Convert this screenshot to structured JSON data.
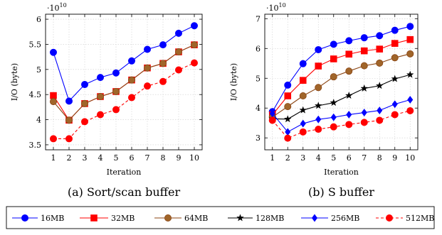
{
  "figure": {
    "legend": [
      {
        "label": "16MB",
        "color": "#0000ff",
        "marker": "circle",
        "dash": "solid"
      },
      {
        "label": "32MB",
        "color": "#ff0000",
        "marker": "square",
        "dash": "solid"
      },
      {
        "label": "64MB",
        "color": "#8b4513",
        "marker": "circle",
        "dash": "solid",
        "fill": "#a0652a"
      },
      {
        "label": "128MB",
        "color": "#000000",
        "marker": "star",
        "dash": "solid"
      },
      {
        "label": "256MB",
        "color": "#0000ff",
        "marker": "diamond",
        "dash": "solid"
      },
      {
        "label": "512MB",
        "color": "#ff0000",
        "marker": "circle",
        "dash": "dashed"
      }
    ]
  },
  "chart_data": [
    {
      "type": "line",
      "caption": "(a) Sort/scan buffer",
      "xlabel": "Iteration",
      "ylabel": "I/O (byte)",
      "scale_label": "·10",
      "scale_exp": "10",
      "x": [
        1,
        2,
        3,
        4,
        5,
        6,
        7,
        8,
        9,
        10
      ],
      "xlim": [
        0.5,
        10.5
      ],
      "ylim": [
        3.4,
        6.1
      ],
      "yticks": [
        3.5,
        4,
        4.5,
        5,
        5.5,
        6
      ],
      "ytick_labels": [
        "3.5",
        "4",
        "4.5",
        "5",
        "5.5",
        "6"
      ],
      "grid": true,
      "series": [
        {
          "name": "16MB",
          "values": [
            5.34,
            4.37,
            4.7,
            4.84,
            4.93,
            5.17,
            5.4,
            5.49,
            5.72,
            5.87
          ]
        },
        {
          "name": "32MB",
          "values": [
            4.48,
            3.99,
            4.32,
            4.46,
            4.56,
            4.79,
            5.03,
            5.12,
            5.35,
            5.49
          ]
        },
        {
          "name": "64MB",
          "values": [
            4.36,
            3.99,
            4.32,
            4.46,
            4.56,
            4.79,
            5.03,
            5.12,
            5.35,
            5.49
          ]
        },
        {
          "name": "512MB",
          "values": [
            3.62,
            3.62,
            3.96,
            4.1,
            4.2,
            4.44,
            4.67,
            4.76,
            4.99,
            5.13
          ]
        }
      ]
    },
    {
      "type": "line",
      "caption": "(b) S buffer",
      "xlabel": "Iteration",
      "ylabel": "I/O (byte)",
      "scale_label": "·10",
      "scale_exp": "10",
      "x": [
        1,
        2,
        3,
        4,
        5,
        6,
        7,
        8,
        9,
        10
      ],
      "xlim": [
        0.5,
        10.5
      ],
      "ylim": [
        2.6,
        7.15
      ],
      "yticks": [
        3,
        4,
        5,
        6,
        7
      ],
      "ytick_labels": [
        "3",
        "4",
        "5",
        "6",
        "7"
      ],
      "grid": true,
      "series": [
        {
          "name": "16MB",
          "values": [
            3.88,
            4.77,
            5.49,
            5.96,
            6.14,
            6.26,
            6.36,
            6.43,
            6.61,
            6.74
          ]
        },
        {
          "name": "32MB",
          "values": [
            3.77,
            4.41,
            4.93,
            5.41,
            5.65,
            5.81,
            5.92,
            5.98,
            6.17,
            6.3
          ]
        },
        {
          "name": "64MB",
          "values": [
            3.7,
            4.05,
            4.41,
            4.69,
            5.05,
            5.24,
            5.42,
            5.51,
            5.69,
            5.82
          ]
        },
        {
          "name": "128MB",
          "values": [
            3.64,
            3.63,
            3.93,
            4.08,
            4.18,
            4.42,
            4.66,
            4.75,
            4.98,
            5.12
          ]
        },
        {
          "name": "256MB",
          "values": [
            3.82,
            3.2,
            3.48,
            3.62,
            3.69,
            3.78,
            3.85,
            3.92,
            4.13,
            4.28
          ]
        },
        {
          "name": "512MB",
          "values": [
            3.59,
            2.99,
            3.2,
            3.29,
            3.37,
            3.45,
            3.52,
            3.59,
            3.78,
            3.91
          ]
        }
      ]
    }
  ]
}
